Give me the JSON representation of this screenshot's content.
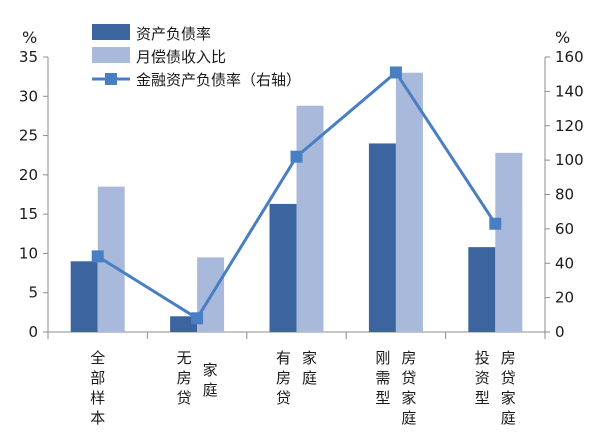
{
  "chart_data": {
    "type": "bar",
    "categories": [
      [
        "全部样本"
      ],
      [
        "无房贷",
        "家庭"
      ],
      [
        "有房贷",
        "家庭"
      ],
      [
        "刚需型",
        "房贷家庭"
      ],
      [
        "投资型",
        "房贷家庭"
      ]
    ],
    "series": [
      {
        "name": "资产负债率",
        "type": "bar",
        "axis": "left",
        "color": "#3c659f",
        "values": [
          9.0,
          2.0,
          16.3,
          24.0,
          10.8
        ]
      },
      {
        "name": "月偿债收入比",
        "type": "bar",
        "axis": "left",
        "color": "#a8b9db",
        "values": [
          18.5,
          9.5,
          28.8,
          33.0,
          22.8
        ]
      },
      {
        "name": "金融资产负债率（右轴）",
        "type": "line",
        "axis": "right",
        "color": "#4a7ec2",
        "values": [
          44,
          8,
          102,
          151,
          63
        ]
      }
    ],
    "y_left": {
      "unit": "%",
      "min": 0,
      "max": 35,
      "ticks": [
        0,
        5,
        10,
        15,
        20,
        25,
        30,
        35
      ]
    },
    "y_right": {
      "unit": "%",
      "min": 0,
      "max": 160,
      "ticks": [
        0,
        20,
        40,
        60,
        80,
        100,
        120,
        140,
        160
      ]
    },
    "legend_position": "top-left",
    "grid": false
  }
}
